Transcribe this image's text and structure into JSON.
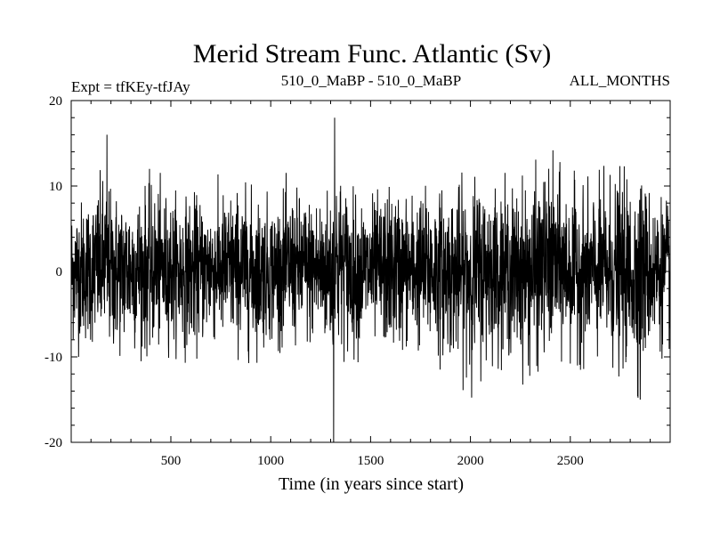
{
  "chart_data": {
    "type": "line",
    "title": "Merid Stream Func. Atlantic (Sv)",
    "subtitle_left": "Expt = tfKEy-tfJAy",
    "subtitle_center": "510_0_MaBP - 510_0_MaBP",
    "subtitle_right": "ALL_MONTHS",
    "xlabel": "Time (in years since start)",
    "ylabel": "",
    "xlim": [
      1,
      3000
    ],
    "ylim": [
      -20,
      20
    ],
    "x_ticks": [
      500,
      1000,
      1500,
      2000,
      2500
    ],
    "y_ticks": [
      -20,
      -10,
      0,
      10,
      20
    ],
    "grid": false,
    "line_color": "#000000",
    "series": [
      {
        "x": [
          1,
          100,
          180,
          200,
          300,
          400,
          500,
          600,
          700,
          800,
          900,
          1000,
          1100,
          1200,
          1300,
          1315,
          1320,
          1400,
          1500,
          1600,
          1700,
          1800,
          1900,
          2000,
          2100,
          2200,
          2300,
          2400,
          2500,
          2600,
          2700,
          2800,
          2850,
          2900,
          3000
        ],
        "y": [
          0,
          2,
          16,
          -1,
          1,
          0,
          2,
          -1,
          1,
          0,
          2,
          -1,
          1,
          0,
          2,
          -20,
          18,
          1,
          0,
          2,
          -1,
          1,
          0,
          -2,
          1,
          0,
          2,
          -1,
          1,
          0,
          2,
          -1,
          -15,
          1,
          0
        ],
        "min": [
          -10,
          -10,
          -9,
          -12,
          -10,
          -11,
          -10,
          -11,
          -9,
          -10,
          -11,
          -10,
          -9,
          -10,
          -11,
          -20,
          -10,
          -11,
          -10,
          -11,
          -10,
          -11,
          -12,
          -15,
          -11,
          -12,
          -14,
          -10,
          -11,
          -12,
          -13,
          -14,
          -15,
          -11,
          -10
        ],
        "max": [
          10,
          11,
          16,
          11,
          12,
          12,
          11,
          10,
          11,
          12,
          11,
          10,
          12,
          11,
          12,
          12,
          18,
          11,
          10,
          12,
          11,
          12,
          11,
          12,
          13,
          11,
          12,
          16,
          12,
          11,
          13,
          12,
          14,
          11,
          10
        ]
      }
    ]
  }
}
